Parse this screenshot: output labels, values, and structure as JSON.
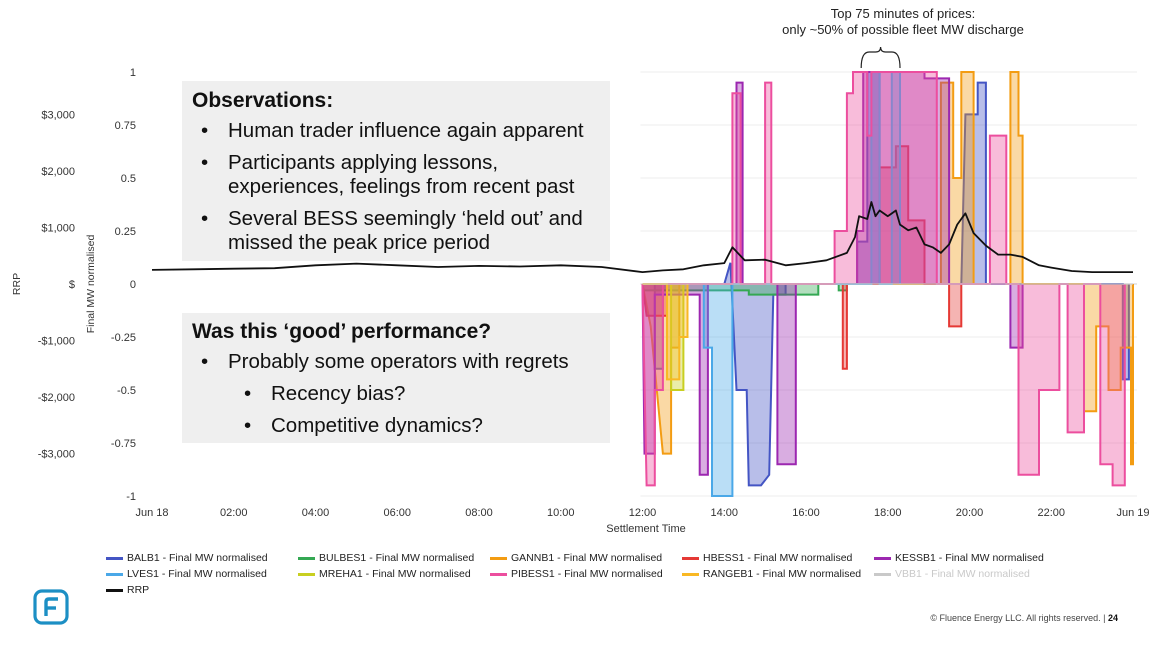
{
  "annotation": {
    "line1": "Top 75 minutes of prices:",
    "line2": "only ~50% of possible fleet MW discharge"
  },
  "observations": {
    "title": "Observations:",
    "bullets": [
      "Human trader influence again apparent",
      "Participants applying lessons, experiences, feelings from recent past",
      "Several BESS seemingly ‘held out’ and missed the peak price period"
    ]
  },
  "performance": {
    "title": "Was this ‘good’ performance?",
    "bullets": [
      "Probably some operators with regrets"
    ],
    "sub_bullets": [
      "Recency bias?",
      "Competitive dynamics?"
    ]
  },
  "chart_data": {
    "type": "area",
    "xlabel": "Settlement Time",
    "ylabel": "Final MW normalised",
    "y2label": "RRP",
    "ylim": [
      -1,
      1
    ],
    "y_ticks": [
      1,
      0.75,
      0.5,
      0.25,
      0,
      -0.25,
      -0.5,
      -0.75,
      -1
    ],
    "y_tick_labels": [
      "1",
      "0.75",
      "0.5",
      "0.25",
      "0",
      "-0.25",
      "-0.5",
      "-0.75",
      "-1"
    ],
    "y2_ticks": [
      3000,
      2000,
      1000,
      0,
      -1000,
      -2000,
      -3000
    ],
    "y2_tick_labels": [
      "$3,000",
      "$2,000",
      "$1,000",
      "$",
      "-$1,000",
      "-$2,000",
      "-$3,000"
    ],
    "y2_range": [
      -3750,
      3750
    ],
    "x_range": [
      0,
      24
    ],
    "x_ticks": [
      0,
      2,
      4,
      6,
      8,
      10,
      12,
      14,
      16,
      18,
      20,
      22,
      24
    ],
    "x_tick_labels": [
      "Jun 18",
      "02:00",
      "04:00",
      "06:00",
      "08:00",
      "10:00",
      "12:00",
      "14:00",
      "16:00",
      "18:00",
      "20:00",
      "22:00",
      "Jun 19"
    ],
    "bracket": [
      17.35,
      18.3
    ],
    "series": [
      {
        "name": "BALB1 - Final MW normalised",
        "color": "#4455c4",
        "muted": false,
        "points": [
          [
            12,
            0
          ],
          [
            12.3,
            0
          ],
          [
            12.3,
            -0.4
          ],
          [
            12.5,
            -0.4
          ],
          [
            12.5,
            0
          ],
          [
            14,
            0
          ],
          [
            14.15,
            0.1
          ],
          [
            14.3,
            -0.5
          ],
          [
            14.55,
            -0.5
          ],
          [
            14.6,
            -0.95
          ],
          [
            14.9,
            -0.95
          ],
          [
            15.1,
            -0.9
          ],
          [
            15.2,
            -0.05
          ],
          [
            15.5,
            -0.05
          ],
          [
            15.5,
            0
          ],
          [
            17.25,
            0
          ],
          [
            17.25,
            0.2
          ],
          [
            17.5,
            0.2
          ],
          [
            17.5,
            1
          ],
          [
            17.8,
            1
          ],
          [
            17.8,
            0
          ],
          [
            19.8,
            0
          ],
          [
            19.9,
            0.8
          ],
          [
            20.2,
            0.8
          ],
          [
            20.2,
            0.95
          ],
          [
            20.4,
            0.95
          ],
          [
            20.4,
            0
          ],
          [
            23.75,
            0
          ],
          [
            23.75,
            -0.45
          ],
          [
            23.9,
            -0.45
          ],
          [
            23.9,
            0
          ]
        ]
      },
      {
        "name": "BULBES1 - Final MW normalised",
        "color": "#34a853",
        "muted": false,
        "points": [
          [
            12,
            -0.03
          ],
          [
            14.6,
            -0.03
          ],
          [
            14.6,
            -0.05
          ],
          [
            16.3,
            -0.05
          ],
          [
            16.3,
            0
          ],
          [
            16.8,
            0
          ],
          [
            16.8,
            -0.03
          ],
          [
            17,
            -0.03
          ],
          [
            17,
            0
          ]
        ]
      },
      {
        "name": "GANNB1 - Final MW normalised",
        "color": "#f39c12",
        "muted": false,
        "points": [
          [
            12,
            0
          ],
          [
            12.2,
            -0.2
          ],
          [
            12.5,
            -0.8
          ],
          [
            12.7,
            -0.8
          ],
          [
            12.7,
            -0.3
          ],
          [
            12.9,
            -0.3
          ],
          [
            12.9,
            0
          ],
          [
            19.3,
            0
          ],
          [
            19.3,
            0.95
          ],
          [
            19.6,
            0.95
          ],
          [
            19.6,
            0.5
          ],
          [
            19.8,
            0.5
          ],
          [
            19.8,
            1
          ],
          [
            20.1,
            1
          ],
          [
            20.1,
            0
          ],
          [
            21,
            0
          ],
          [
            21,
            1
          ],
          [
            21.2,
            1
          ],
          [
            21.2,
            0.7
          ],
          [
            21.3,
            0.7
          ],
          [
            21.3,
            0
          ],
          [
            22.8,
            0
          ],
          [
            22.8,
            -0.6
          ],
          [
            23.1,
            -0.6
          ],
          [
            23.1,
            -0.2
          ],
          [
            23.4,
            -0.2
          ],
          [
            23.4,
            -0.5
          ],
          [
            23.7,
            -0.5
          ],
          [
            23.7,
            -0.3
          ],
          [
            23.95,
            -0.3
          ],
          [
            23.95,
            -0.85
          ],
          [
            24,
            -0.85
          ],
          [
            24,
            0
          ]
        ]
      },
      {
        "name": "HBESS1 - Final MW normalised",
        "color": "#e53935",
        "muted": false,
        "points": [
          [
            12,
            0
          ],
          [
            12.1,
            -0.15
          ],
          [
            12.6,
            -0.15
          ],
          [
            12.6,
            0
          ],
          [
            16.9,
            0
          ],
          [
            16.9,
            -0.4
          ],
          [
            17,
            -0.4
          ],
          [
            17,
            0
          ],
          [
            17.8,
            0
          ],
          [
            17.8,
            0.55
          ],
          [
            18.2,
            0.55
          ],
          [
            18.2,
            0.65
          ],
          [
            18.5,
            0.65
          ],
          [
            18.5,
            0.3
          ],
          [
            18.9,
            0.3
          ],
          [
            18.9,
            0
          ],
          [
            19.5,
            0
          ],
          [
            19.5,
            -0.2
          ],
          [
            19.8,
            -0.2
          ],
          [
            19.8,
            0
          ]
        ]
      },
      {
        "name": "KESSB1 - Final MW normalised",
        "color": "#9c27b0",
        "muted": false,
        "points": [
          [
            12,
            0
          ],
          [
            12.05,
            -0.8
          ],
          [
            12.3,
            -0.8
          ],
          [
            12.3,
            -0.05
          ],
          [
            13.4,
            -0.05
          ],
          [
            13.4,
            -0.9
          ],
          [
            13.6,
            -0.9
          ],
          [
            13.6,
            0
          ],
          [
            14.3,
            0
          ],
          [
            14.3,
            0.95
          ],
          [
            14.45,
            0.95
          ],
          [
            14.45,
            0
          ],
          [
            15.3,
            0
          ],
          [
            15.3,
            -0.85
          ],
          [
            15.75,
            -0.85
          ],
          [
            15.75,
            0
          ],
          [
            17.25,
            0
          ],
          [
            17.25,
            0.25
          ],
          [
            17.4,
            0.25
          ],
          [
            17.4,
            1
          ],
          [
            18.9,
            1
          ],
          [
            18.9,
            0.97
          ],
          [
            19.5,
            0.97
          ],
          [
            19.5,
            0
          ],
          [
            21,
            0
          ],
          [
            21,
            -0.3
          ],
          [
            21.3,
            -0.3
          ],
          [
            21.3,
            0
          ]
        ]
      },
      {
        "name": "LVES1 - Final MW normalised",
        "color": "#4aa8e8",
        "muted": false,
        "points": [
          [
            12,
            0
          ],
          [
            13.5,
            0
          ],
          [
            13.5,
            -0.3
          ],
          [
            13.7,
            -0.3
          ],
          [
            13.7,
            -1
          ],
          [
            14.2,
            -1
          ],
          [
            14.2,
            0
          ],
          [
            17.6,
            0
          ],
          [
            17.6,
            1
          ],
          [
            17.8,
            1
          ],
          [
            17.8,
            0
          ],
          [
            18.1,
            0
          ],
          [
            18.1,
            1
          ],
          [
            18.3,
            1
          ],
          [
            18.3,
            0
          ]
        ]
      },
      {
        "name": "MREHA1 - Final MW normalised",
        "color": "#c8cf20",
        "muted": false,
        "points": [
          [
            12,
            0
          ],
          [
            12.7,
            0
          ],
          [
            12.7,
            -0.5
          ],
          [
            13,
            -0.5
          ],
          [
            13,
            0
          ]
        ]
      },
      {
        "name": "PIBESS1 - Final MW normalised",
        "color": "#ec4e9e",
        "muted": false,
        "points": [
          [
            12,
            0
          ],
          [
            12.1,
            -0.95
          ],
          [
            12.3,
            -0.95
          ],
          [
            12.3,
            -0.5
          ],
          [
            12.5,
            -0.5
          ],
          [
            12.5,
            0
          ],
          [
            14.2,
            0
          ],
          [
            14.2,
            0.9
          ],
          [
            14.4,
            0.9
          ],
          [
            14.4,
            0
          ],
          [
            15,
            0
          ],
          [
            15,
            0.95
          ],
          [
            15.15,
            0.95
          ],
          [
            15.15,
            0
          ],
          [
            16.7,
            0
          ],
          [
            16.7,
            0.25
          ],
          [
            17,
            0.25
          ],
          [
            17,
            0.9
          ],
          [
            17.15,
            0.9
          ],
          [
            17.15,
            1
          ],
          [
            17.5,
            1
          ],
          [
            17.5,
            0.7
          ],
          [
            17.6,
            0.7
          ],
          [
            17.6,
            1
          ],
          [
            19.2,
            1
          ],
          [
            19.2,
            0
          ],
          [
            20.5,
            0
          ],
          [
            20.5,
            0.7
          ],
          [
            20.9,
            0.7
          ],
          [
            20.9,
            0
          ],
          [
            21.2,
            0
          ],
          [
            21.2,
            -0.9
          ],
          [
            21.7,
            -0.9
          ],
          [
            21.7,
            -0.5
          ],
          [
            22.2,
            -0.5
          ],
          [
            22.2,
            0
          ],
          [
            22.4,
            0
          ],
          [
            22.4,
            -0.7
          ],
          [
            22.8,
            -0.7
          ],
          [
            22.8,
            0
          ],
          [
            23.2,
            0
          ],
          [
            23.2,
            -0.85
          ],
          [
            23.5,
            -0.85
          ],
          [
            23.5,
            -0.95
          ],
          [
            23.8,
            -0.95
          ],
          [
            23.8,
            0
          ]
        ]
      },
      {
        "name": "RANGEB1 - Final MW normalised",
        "color": "#f9b824",
        "muted": false,
        "points": [
          [
            12,
            0
          ],
          [
            12.6,
            0
          ],
          [
            12.6,
            -0.45
          ],
          [
            12.9,
            -0.45
          ],
          [
            12.9,
            -0.25
          ],
          [
            13.1,
            -0.25
          ],
          [
            13.1,
            0
          ]
        ]
      },
      {
        "name": "VBB1 - Final MW normalised",
        "color": "#c9c9c9",
        "muted": true,
        "points": [
          [
            12,
            0
          ],
          [
            24,
            0
          ]
        ]
      }
    ],
    "rrp": {
      "name": "RRP",
      "color": "#111111",
      "points": [
        [
          0,
          250
        ],
        [
          1,
          260
        ],
        [
          2,
          270
        ],
        [
          3,
          280
        ],
        [
          4,
          330
        ],
        [
          5,
          360
        ],
        [
          6,
          330
        ],
        [
          7,
          300
        ],
        [
          8,
          320
        ],
        [
          9,
          310
        ],
        [
          10,
          330
        ],
        [
          11,
          300
        ],
        [
          12,
          210
        ],
        [
          12.5,
          240
        ],
        [
          13,
          260
        ],
        [
          13.5,
          330
        ],
        [
          14,
          370
        ],
        [
          14.2,
          650
        ],
        [
          14.5,
          420
        ],
        [
          15,
          430
        ],
        [
          15.5,
          330
        ],
        [
          16,
          370
        ],
        [
          16.5,
          420
        ],
        [
          17,
          550
        ],
        [
          17.2,
          830
        ],
        [
          17.3,
          1200
        ],
        [
          17.5,
          1150
        ],
        [
          17.6,
          1450
        ],
        [
          17.7,
          1200
        ],
        [
          17.8,
          1300
        ],
        [
          18,
          1200
        ],
        [
          18.2,
          1300
        ],
        [
          18.3,
          1050
        ],
        [
          18.5,
          950
        ],
        [
          18.7,
          1000
        ],
        [
          18.9,
          700
        ],
        [
          19.1,
          650
        ],
        [
          19.3,
          550
        ],
        [
          19.5,
          700
        ],
        [
          19.7,
          1050
        ],
        [
          19.9,
          1250
        ],
        [
          20.1,
          900
        ],
        [
          20.4,
          680
        ],
        [
          20.7,
          520
        ],
        [
          21,
          520
        ],
        [
          21.3,
          480
        ],
        [
          21.7,
          330
        ],
        [
          22,
          290
        ],
        [
          22.5,
          230
        ],
        [
          23,
          210
        ],
        [
          23.5,
          210
        ],
        [
          24,
          210
        ]
      ]
    }
  },
  "footer": {
    "copyright": "© Fluence Energy LLC. All rights reserved. |",
    "page": "24"
  }
}
